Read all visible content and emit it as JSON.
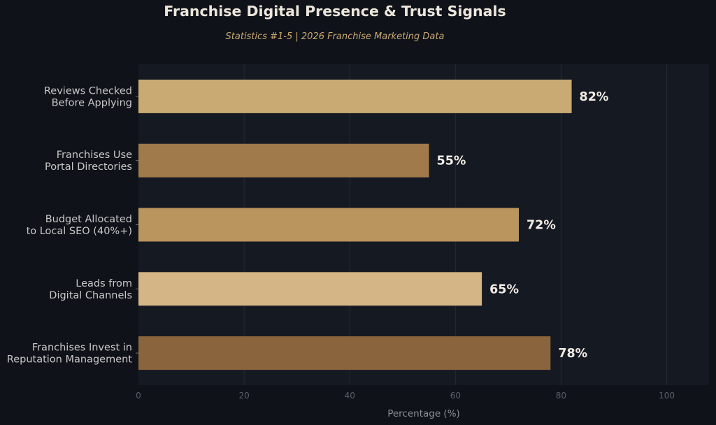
{
  "chart_data": {
    "type": "bar",
    "orientation": "horizontal",
    "title": "Franchise Digital Presence & Trust Signals",
    "subtitle": "Statistics #1-5   |   2026 Franchise Marketing Data",
    "xlabel": "Percentage (%)",
    "ylabel": "",
    "xlim": [
      0,
      108
    ],
    "xticks": [
      "0",
      "20",
      "40",
      "60",
      "80",
      "100"
    ],
    "grid": "vertical",
    "categories": [
      [
        "Reviews Checked",
        "Before Applying"
      ],
      [
        "Franchises Use",
        "Portal Directories"
      ],
      [
        "Budget Allocated",
        "to Local SEO (40%+)"
      ],
      [
        "Leads from",
        "Digital Channels"
      ],
      [
        "Franchises Invest in",
        "Reputation Management"
      ]
    ],
    "values": [
      82,
      55,
      72,
      65,
      78
    ],
    "value_labels": [
      "82%",
      "55%",
      "72%",
      "65%",
      "78%"
    ],
    "colors": [
      "#c9aa72",
      "#a07a4a",
      "#bb955e",
      "#d4b686",
      "#8a643c"
    ],
    "background": "#0f1219",
    "plot_background": "#151922"
  }
}
